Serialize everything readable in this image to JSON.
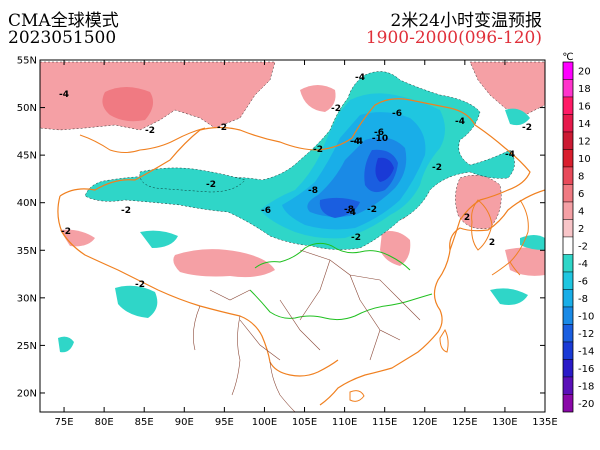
{
  "header": {
    "model": "CMA全球模式",
    "init_time": "2023051500",
    "product": "2米24小时变温预报",
    "valid_range": "1900-2000(096-120)"
  },
  "map": {
    "longitude_labels": [
      "75E",
      "80E",
      "85E",
      "90E",
      "95E",
      "100E",
      "105E",
      "110E",
      "115E",
      "120E",
      "125E",
      "130E",
      "135E"
    ],
    "latitude_labels": [
      "55N",
      "50N",
      "45N",
      "40N",
      "35N",
      "30N",
      "25N",
      "20N"
    ],
    "contour_labels": [
      "-4",
      "-2",
      "-4",
      "-2",
      "-2",
      "-2",
      "-4",
      "-6",
      "-8",
      "-10",
      "-4",
      "-2",
      "-6",
      "-4",
      "-2",
      "-6",
      "-4",
      "-2",
      "-8",
      "-4",
      "-2",
      "-2",
      "-2",
      "-2",
      "-2",
      "2",
      "2"
    ]
  },
  "colorbar": {
    "unit": "℃",
    "levels": [
      "20",
      "18",
      "16",
      "14",
      "12",
      "10",
      "8",
      "6",
      "4",
      "2",
      "-2",
      "-4",
      "-6",
      "-8",
      "-10",
      "-12",
      "-14",
      "-16",
      "-18",
      "-20"
    ],
    "colors": [
      "#ff00ff",
      "#ff33cc",
      "#ff1a66",
      "#e6194b",
      "#cc1a33",
      "#d91e2d",
      "#e84a5a",
      "#f07a82",
      "#f5a0a5",
      "#f8c5c8",
      "#ffffff",
      "#2fd6c8",
      "#1fc6e0",
      "#19aee8",
      "#1a8ae6",
      "#1a5ee0",
      "#1a3ad6",
      "#2a1ac8",
      "#5a10b8",
      "#8a08a8"
    ]
  }
}
